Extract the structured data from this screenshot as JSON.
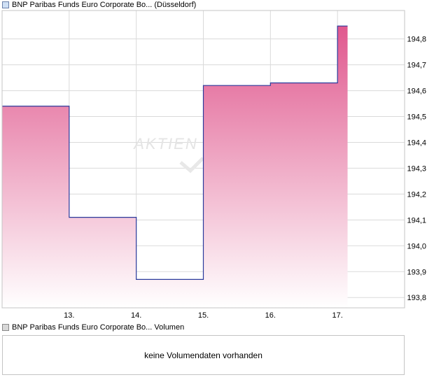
{
  "legend": {
    "price_series": "BNP Paribas Funds Euro Corporate Bo... (Düsseldorf)",
    "volume_series": "BNP Paribas Funds Euro Corporate Bo... Volumen"
  },
  "volume_panel": {
    "message": "keine Volumendaten vorhanden"
  },
  "watermark": "AKTIEN",
  "chart_data": {
    "type": "area",
    "x_tick_labels": [
      "13.",
      "14.",
      "15.",
      "16.",
      "17."
    ],
    "y_tick_labels": [
      "194,8",
      "194,7",
      "194,6",
      "194,5",
      "194,4",
      "194,3",
      "194,2",
      "194,1",
      "194,0",
      "193,9",
      "193,8"
    ],
    "ylim": [
      193.76,
      194.91
    ],
    "x_start": 12.0,
    "x_end": 18.0,
    "step": true,
    "series": [
      {
        "x": [
          12.0,
          13.0,
          14.0,
          15.0,
          16.0,
          17.0,
          17.15
        ],
        "y": [
          194.54,
          194.11,
          193.87,
          194.62,
          194.63,
          194.85,
          194.85
        ]
      }
    ],
    "grid": true,
    "y_axis_side": "right",
    "line_color": "#2a3a9c",
    "fill_top_color": "#e0588e",
    "fill_bottom_color": "#ffffff"
  }
}
